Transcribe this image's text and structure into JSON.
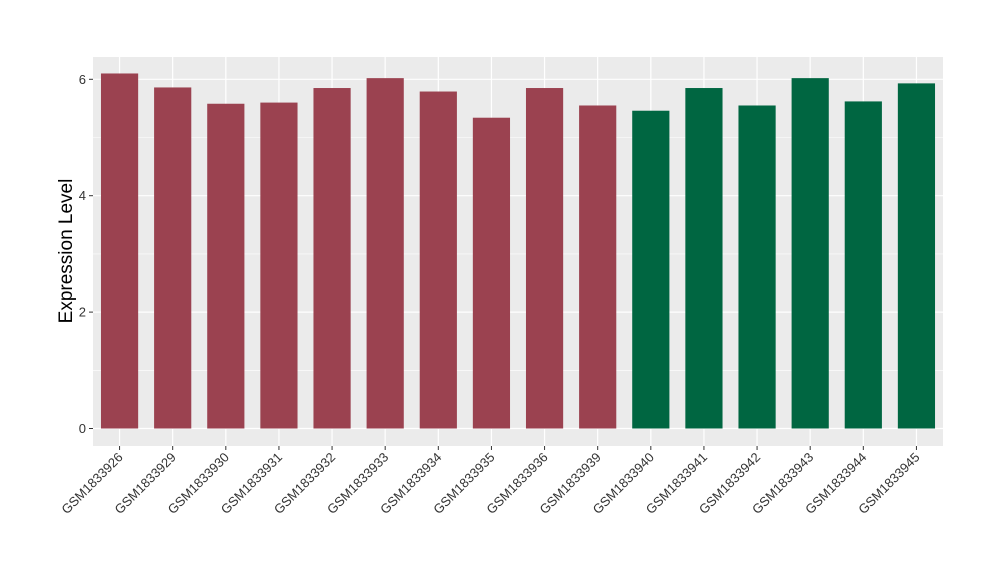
{
  "chart_data": {
    "type": "bar",
    "ylabel": "Expression Level",
    "xlabel": "",
    "ylim": [
      -0.3,
      6.3
    ],
    "yticks": [
      0,
      2,
      4,
      6
    ],
    "grid": true,
    "legend": "none",
    "colors": {
      "group_a": "#9B4250",
      "group_b": "#006641",
      "panel": "#EBEBEB",
      "grid": "#FFFFFF"
    },
    "categories": [
      "GSM1833926",
      "GSM1833929",
      "GSM1833930",
      "GSM1833931",
      "GSM1833932",
      "GSM1833933",
      "GSM1833934",
      "GSM1833935",
      "GSM1833936",
      "GSM1833939",
      "GSM1833940",
      "GSM1833941",
      "GSM1833942",
      "GSM1833943",
      "GSM1833944",
      "GSM1833945"
    ],
    "values": [
      6.1,
      5.86,
      5.58,
      5.6,
      5.85,
      6.02,
      5.79,
      5.34,
      5.85,
      5.55,
      5.46,
      5.85,
      5.55,
      6.02,
      5.62,
      5.93
    ],
    "groups": [
      "a",
      "a",
      "a",
      "a",
      "a",
      "a",
      "a",
      "a",
      "a",
      "a",
      "b",
      "b",
      "b",
      "b",
      "b",
      "b"
    ]
  }
}
